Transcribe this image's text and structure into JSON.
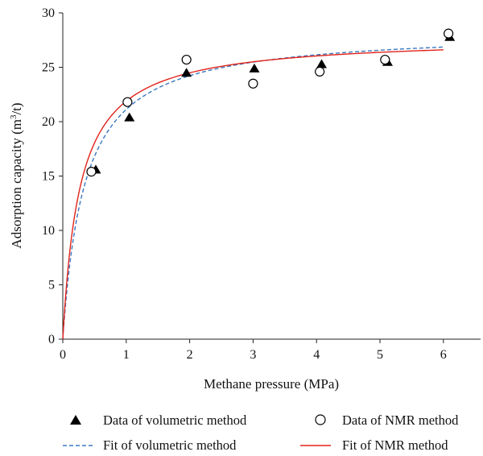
{
  "chart_data": {
    "type": "scatter",
    "xlabel": "Methane pressure (MPa)",
    "ylabel": {
      "main": "Adsorption capacity (m",
      "sup": "3",
      "tail": "/t)"
    },
    "xlim": [
      0,
      6.6
    ],
    "ylim": [
      0,
      30
    ],
    "x_ticks": [
      0,
      1,
      2,
      3,
      4,
      5,
      6
    ],
    "y_ticks": [
      0,
      5,
      10,
      15,
      20,
      25,
      30
    ],
    "grid": false,
    "legend_position": "bottom",
    "series": [
      {
        "name": "Data of volumetric method",
        "kind": "points",
        "marker": "filled-triangle",
        "color": "#000000",
        "points": [
          [
            0.52,
            15.6
          ],
          [
            1.05,
            20.4
          ],
          [
            1.95,
            24.5
          ],
          [
            3.02,
            24.9
          ],
          [
            4.08,
            25.3
          ],
          [
            5.12,
            25.5
          ],
          [
            6.1,
            27.8
          ]
        ]
      },
      {
        "name": "Data of NMR method",
        "kind": "points",
        "marker": "open-circle",
        "color": "#000000",
        "points": [
          [
            0.45,
            15.4
          ],
          [
            1.02,
            21.8
          ],
          [
            1.95,
            25.7
          ],
          [
            3.0,
            23.5
          ],
          [
            4.05,
            24.6
          ],
          [
            5.08,
            25.7
          ],
          [
            6.08,
            28.1
          ]
        ]
      },
      {
        "name": "Fit of volumetric method",
        "kind": "line",
        "style": "dashed",
        "color": "#3a78c2",
        "langmuir_max": 28.4,
        "langmuir_b": 2.9,
        "x_range": [
          0,
          6.0
        ]
      },
      {
        "name": "Fit of NMR method",
        "kind": "line",
        "style": "solid",
        "color": "#e2231a",
        "langmuir_max": 27.8,
        "langmuir_b": 3.7,
        "x_range": [
          0,
          6.0
        ]
      }
    ]
  }
}
